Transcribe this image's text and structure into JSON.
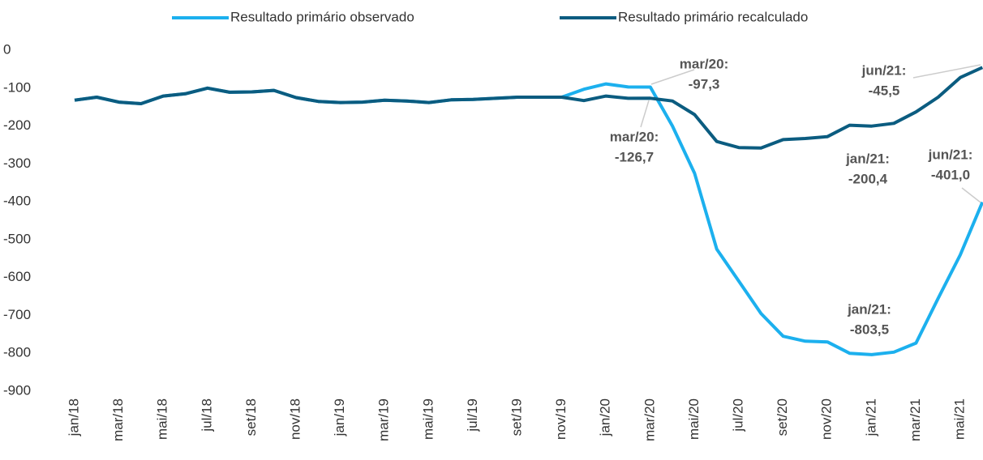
{
  "chart_data": {
    "type": "line",
    "categories": [
      "jan/18",
      null,
      "mar/18",
      null,
      "mai/18",
      null,
      "jul/18",
      null,
      "set/18",
      null,
      "nov/18",
      null,
      "jan/19",
      null,
      "mar/19",
      null,
      "mai/19",
      null,
      "jul/19",
      null,
      "set/19",
      null,
      "nov/19",
      null,
      "jan/20",
      null,
      "mar/20",
      null,
      "mai/20",
      null,
      "jul/20",
      null,
      "set/20",
      null,
      "nov/20",
      null,
      "jan/21",
      null,
      "mar/21",
      null,
      "mai/21",
      null
    ],
    "series": [
      {
        "name": "Resultado primário observado",
        "color": "#1cb0ee",
        "values": [
          -132,
          -124,
          -137,
          -141,
          -121,
          -115,
          -100,
          -111,
          -110,
          -106,
          -125,
          -135,
          -138,
          -137,
          -132,
          -134,
          -138,
          -131,
          -130,
          -127,
          -124,
          -124,
          -124,
          -103,
          -89,
          -97,
          -97.3,
          -200,
          -325,
          -525,
          -610,
          -695,
          -755,
          -768,
          -770,
          -800,
          -803.5,
          -797,
          -773,
          -655,
          -540,
          -401.0
        ]
      },
      {
        "name": "Resultado primário recalculado",
        "color": "#0b5c80",
        "values": [
          -132,
          -124,
          -137,
          -141,
          -121,
          -115,
          -100,
          -111,
          -110,
          -106,
          -125,
          -135,
          -138,
          -137,
          -132,
          -134,
          -138,
          -131,
          -130,
          -127,
          -124,
          -124,
          -124,
          -133,
          -121,
          -127,
          -126.7,
          -134,
          -170,
          -241,
          -257,
          -258,
          -236,
          -233,
          -228,
          -198,
          -200.4,
          -193,
          -163,
          -124,
          -72,
          -45.5
        ]
      }
    ],
    "annotations": [
      {
        "title": "mar/20:",
        "label": "-97,3"
      },
      {
        "title": "mar/20:",
        "label": "-126,7"
      },
      {
        "title": "jan/21:",
        "label": "-200,4"
      },
      {
        "title": "jan/21:",
        "label": "-803,5"
      },
      {
        "title": "jun/21:",
        "label": "-45,5"
      },
      {
        "title": "jun/21:",
        "label": "-401,0"
      }
    ],
    "ylim": [
      -900,
      0
    ],
    "yticks": [
      0,
      -100,
      -200,
      -300,
      -400,
      -500,
      -600,
      -700,
      -800,
      -900
    ],
    "grid": false,
    "legend": "top"
  }
}
